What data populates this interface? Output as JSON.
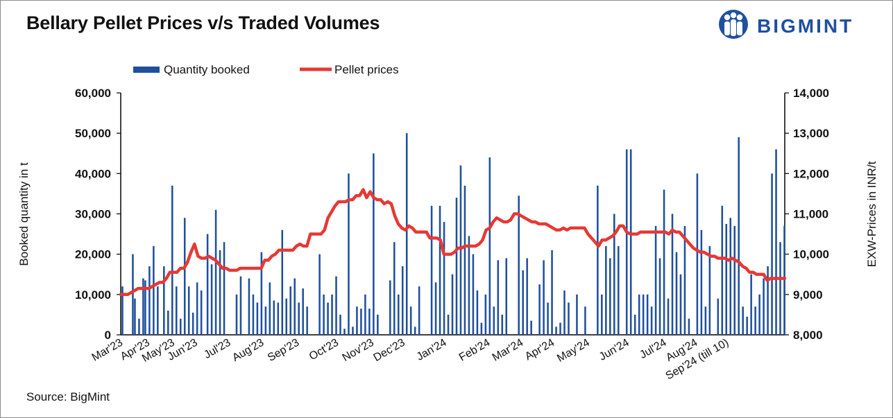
{
  "title": "Bellary Pellet Prices v/s Traded Volumes",
  "source": "Source: BigMint",
  "logo": {
    "text": "BIGMINT",
    "color": "#1f4fa0"
  },
  "colors": {
    "bar": "#1f4f9c",
    "line": "#e53935",
    "axis": "#000000"
  },
  "chart_data": {
    "type": "bar",
    "title": "Bellary Pellet Prices v/s Traded Volumes",
    "ylabel": "Booked quantity in t",
    "y2label": "EXW-Prices in INR/t",
    "ylim": [
      0,
      60000
    ],
    "y2lim": [
      8000,
      14000
    ],
    "yticks": [
      "0",
      "10,000",
      "20,000",
      "30,000",
      "40,000",
      "50,000",
      "60,000"
    ],
    "y2ticks": [
      "8,000",
      "9,000",
      "10,000",
      "11,000",
      "12,000",
      "13,000",
      "14,000"
    ],
    "legend_position": "top-left",
    "months": [
      "Mar'23",
      "Apr'23",
      "May'23",
      "Jun'23",
      "Jul'23",
      "Aug'23",
      "Sep'23",
      "Oct'23",
      "Nov'23",
      "Dec'23",
      "Jan'24",
      "Feb'24",
      "Mar'24",
      "Apr'24",
      "May'24",
      "Jun'24",
      "Jul'24",
      "Aug'24",
      "Sep'24 (till 10)"
    ],
    "month_start_index": [
      0,
      13,
      25,
      36,
      52,
      68,
      85,
      104,
      121,
      136,
      156,
      177,
      193,
      208,
      225,
      244,
      262,
      277,
      292
    ],
    "series": [
      {
        "name": "Quantity booked",
        "kind": "bar",
        "values": [
          12000,
          0,
          0,
          0,
          0,
          20000,
          9000,
          0,
          4000,
          0,
          14000,
          13500,
          0,
          17000,
          0,
          22000,
          0,
          12000,
          0,
          0,
          17000,
          0,
          6000,
          0,
          37000,
          0,
          12000,
          0,
          4000,
          0,
          29000,
          0,
          12000,
          0,
          5500,
          0,
          13000,
          0,
          11000,
          0,
          0,
          25000,
          0,
          17500,
          0,
          31000,
          0,
          21000,
          0,
          23000,
          0,
          0,
          0,
          0,
          0,
          10000,
          0,
          14500,
          0,
          0,
          0,
          14000,
          0,
          10000,
          0,
          8000,
          0,
          20500,
          0,
          7000,
          0,
          13000,
          0,
          8500,
          0,
          8000,
          0,
          26000,
          0,
          9000,
          0,
          12000,
          0,
          14000,
          0,
          8000,
          0,
          11500,
          0,
          7000,
          0,
          0,
          0,
          0,
          0,
          20000,
          0,
          10000,
          0,
          8000,
          0,
          10000,
          0,
          14500,
          0,
          5000,
          0,
          1500,
          0,
          40000,
          0,
          2000,
          0,
          7000,
          0,
          6500,
          0,
          10000,
          0,
          6500,
          0,
          45000,
          0,
          5000,
          0,
          0,
          0,
          0,
          0,
          13500,
          0,
          23000,
          0,
          10000,
          0,
          17000,
          0,
          50000,
          0,
          7000,
          0,
          2000,
          0,
          12000,
          0,
          0,
          0,
          0,
          0,
          32000,
          0,
          13000,
          0,
          32000,
          0,
          28000,
          0,
          5000,
          0,
          15000,
          0,
          34000,
          0,
          42000,
          0,
          37000,
          0,
          24500,
          0,
          20000,
          0,
          11000,
          0,
          3000,
          0,
          10000,
          0,
          44000,
          0,
          7000,
          0,
          18500,
          0,
          5000,
          0,
          19000,
          0,
          0,
          0,
          0,
          0,
          34500,
          0,
          16000,
          0,
          19000,
          0,
          3500,
          0,
          0,
          0,
          12500,
          0,
          18500,
          0,
          8000,
          0,
          21000,
          0,
          2000,
          0,
          3000,
          0,
          11000,
          0,
          8000,
          0,
          0,
          0,
          10000,
          0,
          0,
          0,
          7000,
          0,
          0,
          0,
          0,
          0,
          37000,
          0,
          10000,
          0,
          22000,
          0,
          19000,
          0,
          30000,
          0,
          22000,
          0,
          0,
          0,
          46000,
          0,
          46000,
          0,
          5000,
          0,
          10000,
          0,
          10000,
          0,
          10000,
          0,
          7000,
          0,
          27000,
          0,
          19000,
          0,
          36000,
          0,
          9000,
          0,
          30000,
          0,
          20500,
          0,
          15000,
          0,
          27000,
          0,
          4000,
          0,
          0,
          0,
          40000,
          0,
          26000,
          0,
          7000,
          0,
          22000,
          0,
          0,
          0,
          9000,
          0,
          32000,
          0,
          27500,
          0,
          29000,
          0,
          27000,
          0,
          49000,
          0,
          7000,
          0,
          4500,
          0,
          15000,
          0,
          7000,
          0,
          10000,
          0,
          14000,
          0,
          17000,
          0,
          40000,
          0,
          46000,
          0,
          23000,
          0,
          27000
        ]
      },
      {
        "name": "Pellet prices",
        "kind": "line",
        "axis": "right",
        "values": [
          9000,
          9000,
          9000,
          9050,
          9100,
          9150,
          9150,
          9150,
          9150,
          9200,
          9250,
          9300,
          9300,
          9400,
          9550,
          9550,
          9550,
          9650,
          9650,
          9800,
          10050,
          10250,
          9950,
          9900,
          9900,
          9950,
          9900,
          9850,
          9750,
          9650,
          9650,
          9600,
          9600,
          9600,
          9650,
          9650,
          9650,
          9650,
          9650,
          9650,
          9650,
          9850,
          9850,
          9950,
          10000,
          10100,
          10100,
          10100,
          10100,
          10100,
          10200,
          10250,
          10200,
          10200,
          10500,
          10500,
          10500,
          10500,
          10600,
          10900,
          11050,
          11200,
          11300,
          11300,
          11300,
          11350,
          11350,
          11450,
          11450,
          11600,
          11400,
          11550,
          11400,
          11350,
          11350,
          11250,
          11300,
          11250,
          10950,
          10750,
          10650,
          10600,
          10700,
          10650,
          10550,
          10550,
          10550,
          10550,
          10400,
          10400,
          10400,
          10350,
          10000,
          10000,
          10000,
          10050,
          10150,
          10150,
          10200,
          10200,
          10200,
          10200,
          10250,
          10350,
          10600,
          10650,
          10800,
          10900,
          10850,
          10800,
          10800,
          10850,
          11000,
          11000,
          10950,
          10900,
          10850,
          10800,
          10800,
          10750,
          10750,
          10750,
          10700,
          10650,
          10600,
          10600,
          10650,
          10600,
          10650,
          10650,
          10650,
          10650,
          10650,
          10500,
          10400,
          10300,
          10200,
          10350,
          10350,
          10400,
          10450,
          10550,
          10700,
          10700,
          10550,
          10500,
          10500,
          10500,
          10550,
          10550,
          10550,
          10550,
          10550,
          10550,
          10550,
          10550,
          10500,
          10600,
          10550,
          10550,
          10450,
          10350,
          10250,
          10150,
          10100,
          10050,
          10050,
          10000,
          9950,
          9950,
          9900,
          9900,
          9900,
          9850,
          9900,
          9850,
          9800,
          9700,
          9650,
          9550,
          9550,
          9500,
          9500,
          9500,
          9350,
          9400,
          9400,
          9400,
          9400,
          9400
        ]
      }
    ]
  }
}
